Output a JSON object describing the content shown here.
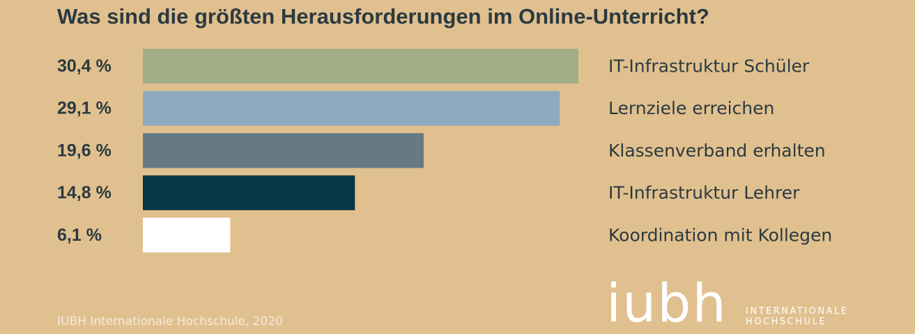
{
  "chart_data": {
    "type": "bar",
    "orientation": "horizontal",
    "title": "Was sind die größten Herausforderungen im Online-Unterricht?",
    "categories": [
      "IT-Infrastruktur Schüler",
      "Lernziele erreichen",
      "Klassenverband erhalten",
      "IT-Infrastruktur Lehrer",
      "Koordination mit Kollegen"
    ],
    "values": [
      30.4,
      29.1,
      19.6,
      14.8,
      6.1
    ],
    "value_labels": [
      "30,4 %",
      "29,1 %",
      "19,6 %",
      "14,8 %",
      "6,1 %"
    ],
    "unit": "%",
    "colors": [
      "#a1ad85",
      "#8daabe",
      "#667a84",
      "#053844",
      "#ffffff"
    ],
    "xlim": [
      0,
      30.4
    ],
    "grid": false,
    "legend": "none"
  },
  "footer": {
    "source": "IUBH Internationale Hochschule, 2020"
  },
  "logo": {
    "mark": "iubh",
    "subtitle_line1": "INTERNATIONALE",
    "subtitle_line2": "HOCHSCHULE"
  },
  "colors": {
    "background": "#e1c08f",
    "text_dark": "#2b3a40",
    "text_light": "#ffffff"
  }
}
